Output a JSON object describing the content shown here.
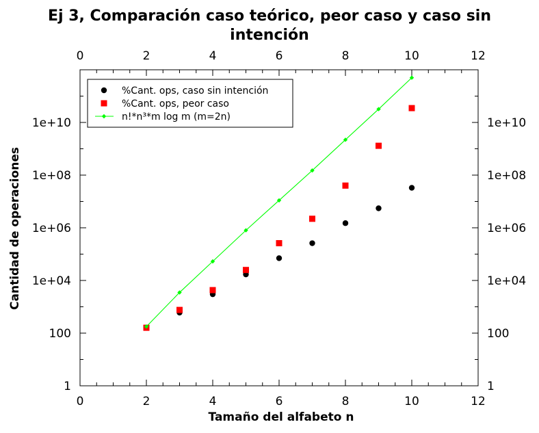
{
  "chart_data": {
    "type": "scatter",
    "title_line1": "Ej 3, Comparación caso teórico, peor caso y caso sin",
    "title_line2": "intención",
    "xlabel": "Tamaño del alfabeto n",
    "ylabel": "Cantidad de operaciones",
    "xlim": [
      0,
      12
    ],
    "ylim": [
      1,
      1000000000000.0
    ],
    "yscale": "log",
    "x_ticks": [
      0,
      2,
      4,
      6,
      8,
      10,
      12
    ],
    "x_tick_labels": [
      "0",
      "2",
      "4",
      "6",
      "8",
      "10",
      "12"
    ],
    "y_ticks": [
      1,
      100,
      10000,
      1000000,
      100000000,
      10000000000
    ],
    "y_tick_labels": [
      "1",
      "100",
      "1e+04",
      "1e+06",
      "1e+08",
      "1e+10"
    ],
    "grid": false,
    "legend_position": "top-left",
    "series": [
      {
        "name": "%Cant. ops, caso sin intención",
        "marker": "circle",
        "color": "#000000",
        "x": [
          2,
          3,
          4,
          5,
          6,
          7,
          8,
          9,
          10
        ],
        "y": [
          160,
          600,
          3000,
          17000,
          70000,
          260000,
          1500000,
          5500000,
          33000000
        ]
      },
      {
        "name": "%Cant. ops, peor caso",
        "marker": "square",
        "color": "#ff0000",
        "x": [
          2,
          3,
          4,
          5,
          6,
          7,
          8,
          9,
          10
        ],
        "y": [
          160,
          760,
          4300,
          25000,
          260000,
          2200000,
          40000000,
          1300000000,
          35000000000
        ]
      },
      {
        "name": "n!*n³*m log m (m=2n)",
        "marker": "diamond-line",
        "color": "#00ff00",
        "x": [
          2,
          3,
          4,
          5,
          6,
          7,
          8,
          9,
          10
        ],
        "y": [
          177,
          3500,
          53000,
          800000,
          11000000,
          150000000,
          2200000000,
          32000000000,
          500000000000
        ]
      }
    ]
  }
}
